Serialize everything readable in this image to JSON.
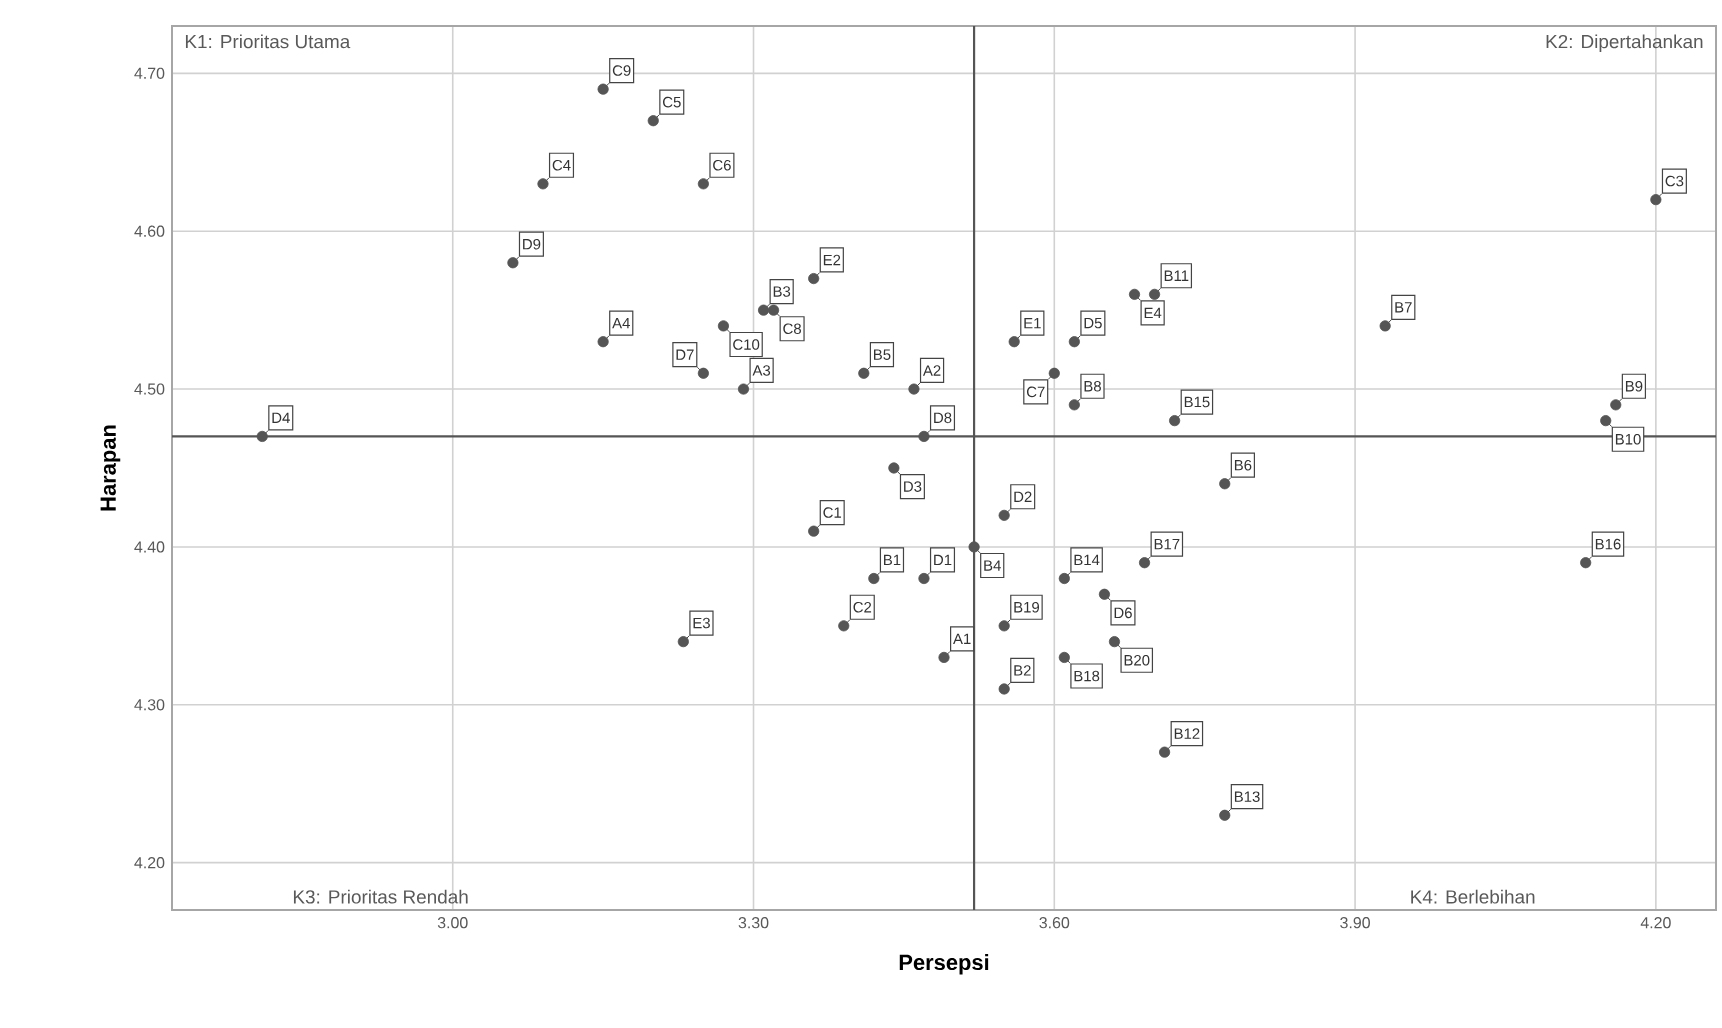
{
  "chart_data": {
    "type": "scatter",
    "xlabel": "Persepsi",
    "ylabel": "Harapan",
    "xlim": [
      2.72,
      4.26
    ],
    "ylim": [
      4.17,
      4.73
    ],
    "xticks": [
      {
        "value": 3.0,
        "label": "3.00"
      },
      {
        "value": 3.3,
        "label": "3.30"
      },
      {
        "value": 3.6,
        "label": "3.60"
      },
      {
        "value": 3.9,
        "label": "3.90"
      },
      {
        "value": 4.2,
        "label": "4.20"
      }
    ],
    "yticks": [
      {
        "value": 4.2,
        "label": "4.20"
      },
      {
        "value": 4.3,
        "label": "4.30"
      },
      {
        "value": 4.4,
        "label": "4.40"
      },
      {
        "value": 4.5,
        "label": "4.50"
      },
      {
        "value": 4.6,
        "label": "4.60"
      },
      {
        "value": 4.7,
        "label": "4.70"
      }
    ],
    "grid": true,
    "marker": "circle",
    "ref_lines": [
      {
        "axis": "x",
        "value": 3.52,
        "color": "#555555"
      },
      {
        "axis": "y",
        "value": 4.47,
        "color": "#555555"
      }
    ],
    "series": [
      {
        "color": "#555555",
        "x": [
          3.15,
          3.2,
          3.09,
          3.25,
          3.06,
          3.15,
          3.27,
          3.25,
          3.29,
          2.81,
          3.31,
          3.32,
          3.36,
          3.41,
          3.46,
          3.44,
          3.47,
          3.36,
          3.42,
          3.47,
          3.52,
          3.39,
          3.49,
          3.23,
          3.55,
          3.6,
          3.62,
          3.72,
          3.77,
          3.69,
          3.61,
          3.65,
          3.66,
          3.55,
          3.61,
          3.55,
          3.71,
          3.77,
          3.7,
          3.68,
          3.56,
          3.62,
          3.93,
          4.16,
          4.15,
          4.13,
          4.2
        ],
        "values": [
          4.69,
          4.67,
          4.63,
          4.63,
          4.58,
          4.53,
          4.54,
          4.51,
          4.5,
          4.47,
          4.55,
          4.55,
          4.57,
          4.51,
          4.5,
          4.45,
          4.47,
          4.41,
          4.38,
          4.38,
          4.4,
          4.35,
          4.33,
          4.34,
          4.42,
          4.51,
          4.49,
          4.48,
          4.44,
          4.39,
          4.38,
          4.37,
          4.34,
          4.35,
          4.33,
          4.31,
          4.27,
          4.23,
          4.56,
          4.56,
          4.53,
          4.53,
          4.54,
          4.49,
          4.48,
          4.39,
          4.62
        ]
      }
    ],
    "annotations": [
      "K1: Prioritas Utama",
      "K2: Dipertahankan",
      "K3: Prioritas Rendah",
      "K4: Berlebihan",
      {
        "text": "C9",
        "x": 3.15,
        "y": 4.69
      },
      {
        "text": "C5",
        "x": 3.2,
        "y": 4.67
      },
      {
        "text": "C4",
        "x": 3.09,
        "y": 4.63
      },
      {
        "text": "C6",
        "x": 3.25,
        "y": 4.63
      },
      {
        "text": "D9",
        "x": 3.06,
        "y": 4.58
      },
      {
        "text": "A4",
        "x": 3.15,
        "y": 4.53
      },
      {
        "text": "C10",
        "x": 3.27,
        "y": 4.54
      },
      {
        "text": "D7",
        "x": 3.25,
        "y": 4.51
      },
      {
        "text": "A3",
        "x": 3.29,
        "y": 4.5
      },
      {
        "text": "D4",
        "x": 2.81,
        "y": 4.47
      },
      {
        "text": "B3",
        "x": 3.31,
        "y": 4.55
      },
      {
        "text": "C8",
        "x": 3.32,
        "y": 4.55
      },
      {
        "text": "E2",
        "x": 3.36,
        "y": 4.57
      },
      {
        "text": "B5",
        "x": 3.41,
        "y": 4.51
      },
      {
        "text": "A2",
        "x": 3.46,
        "y": 4.5
      },
      {
        "text": "D3",
        "x": 3.44,
        "y": 4.45
      },
      {
        "text": "D8",
        "x": 3.47,
        "y": 4.47
      },
      {
        "text": "C1",
        "x": 3.36,
        "y": 4.41
      },
      {
        "text": "B1",
        "x": 3.42,
        "y": 4.38
      },
      {
        "text": "D1",
        "x": 3.47,
        "y": 4.38
      },
      {
        "text": "B4",
        "x": 3.52,
        "y": 4.4
      },
      {
        "text": "C2",
        "x": 3.39,
        "y": 4.35
      },
      {
        "text": "A1",
        "x": 3.49,
        "y": 4.33
      },
      {
        "text": "E3",
        "x": 3.23,
        "y": 4.34
      },
      {
        "text": "D2",
        "x": 3.55,
        "y": 4.42
      },
      {
        "text": "C7",
        "x": 3.6,
        "y": 4.51
      },
      {
        "text": "B8",
        "x": 3.62,
        "y": 4.49
      },
      {
        "text": "B15",
        "x": 3.72,
        "y": 4.48
      },
      {
        "text": "B6",
        "x": 3.77,
        "y": 4.44
      },
      {
        "text": "B17",
        "x": 3.69,
        "y": 4.39
      },
      {
        "text": "B14",
        "x": 3.61,
        "y": 4.38
      },
      {
        "text": "D6",
        "x": 3.65,
        "y": 4.37
      },
      {
        "text": "B20",
        "x": 3.66,
        "y": 4.34
      },
      {
        "text": "B19",
        "x": 3.55,
        "y": 4.35
      },
      {
        "text": "B18",
        "x": 3.61,
        "y": 4.33
      },
      {
        "text": "B2",
        "x": 3.55,
        "y": 4.31
      },
      {
        "text": "B12",
        "x": 3.71,
        "y": 4.27
      },
      {
        "text": "B13",
        "x": 3.77,
        "y": 4.23
      },
      {
        "text": "B11",
        "x": 3.7,
        "y": 4.56
      },
      {
        "text": "E4",
        "x": 3.68,
        "y": 4.56
      },
      {
        "text": "E1",
        "x": 3.56,
        "y": 4.53
      },
      {
        "text": "D5",
        "x": 3.62,
        "y": 4.53
      },
      {
        "text": "B7",
        "x": 3.93,
        "y": 4.54
      },
      {
        "text": "B9",
        "x": 4.16,
        "y": 4.49
      },
      {
        "text": "B10",
        "x": 4.15,
        "y": 4.48
      },
      {
        "text": "B16",
        "x": 4.13,
        "y": 4.39
      },
      {
        "text": "C3",
        "x": 4.2,
        "y": 4.62
      }
    ]
  }
}
